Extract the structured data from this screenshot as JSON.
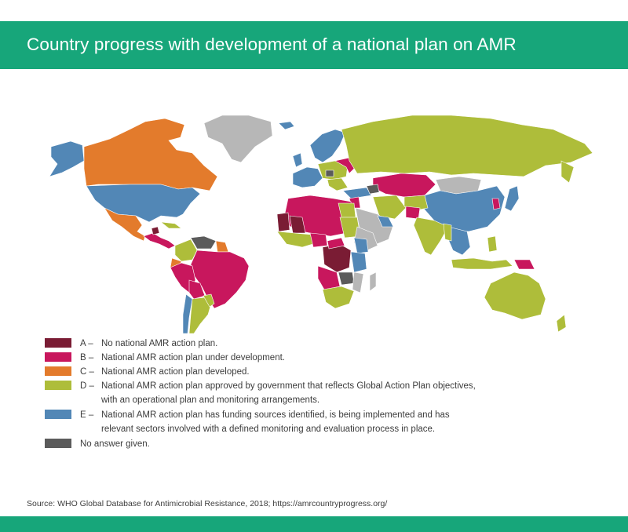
{
  "title": "Country progress with development of a national plan on AMR",
  "colors": {
    "band": "#17a67a",
    "A": "#7a1c34",
    "B": "#c8175d",
    "C": "#e37b2c",
    "D": "#aebd3a",
    "E": "#5287b6",
    "none": "#5b5b5b",
    "nodata": "#b7b7b7"
  },
  "legend": [
    {
      "key": "A",
      "letter": "A –",
      "text": "No national AMR action plan.",
      "color": "#7a1c34"
    },
    {
      "key": "B",
      "letter": "B –",
      "text": "National AMR action plan under development.",
      "color": "#c8175d"
    },
    {
      "key": "C",
      "letter": "C –",
      "text": "National AMR action plan developed.",
      "color": "#e37b2c"
    },
    {
      "key": "D",
      "letter": "D –",
      "text": "National AMR action plan approved by government that reflects Global Action Plan objectives,\nwith an operational plan and monitoring arrangements.",
      "color": "#aebd3a"
    },
    {
      "key": "E",
      "letter": "E –",
      "text": "National AMR action plan has funding sources identified, is being implemented and has\nrelevant sectors involved with a defined monitoring and evaluation process in place.",
      "color": "#5287b6"
    },
    {
      "key": "none",
      "letter": "",
      "text": "No answer given.",
      "color": "#5b5b5b"
    }
  ],
  "source": "Source: WHO Global Database for Antimicrobial Resistance, 2018; https://amrcountryprogress.org/"
}
